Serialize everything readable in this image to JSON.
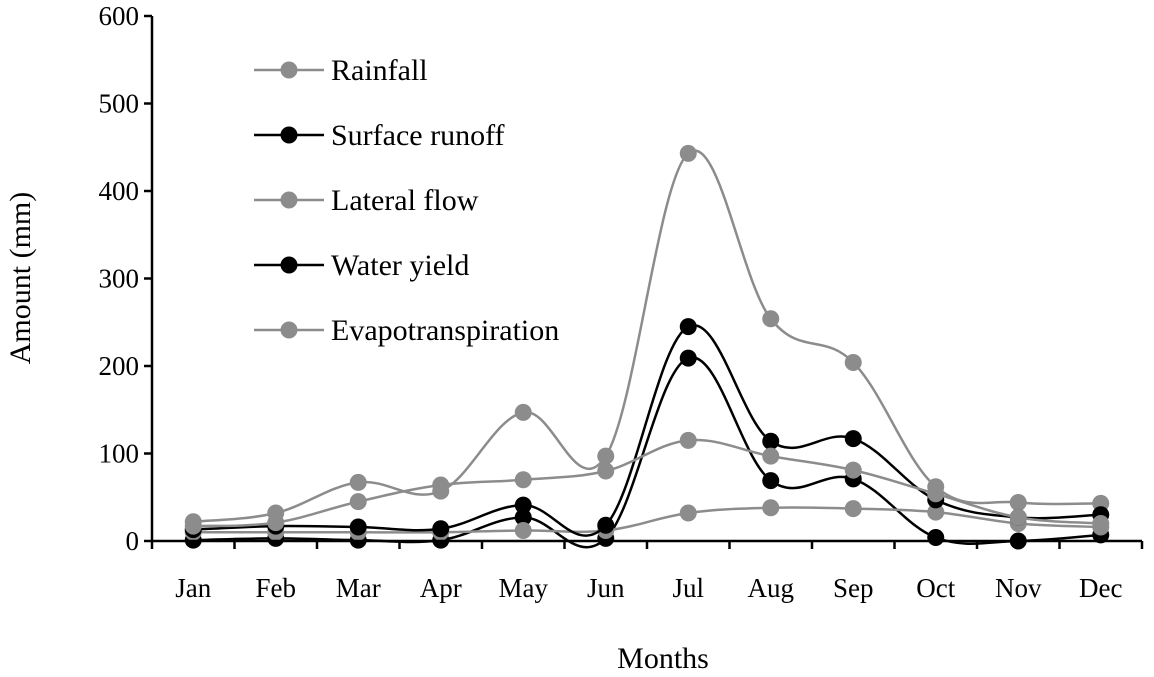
{
  "chart_data": {
    "type": "line",
    "title": "",
    "xlabel": "Months",
    "ylabel": "Amount (mm)",
    "ylim": [
      0,
      600
    ],
    "yticks": [
      "0",
      "100",
      "200",
      "300",
      "400",
      "500",
      "600"
    ],
    "categories": [
      "Jan",
      "Feb",
      "Mar",
      "Apr",
      "May",
      "Jun",
      "Jul",
      "Aug",
      "Sep",
      "Oct",
      "Nov",
      "Dec"
    ],
    "grid": false,
    "legend_position": "top-left",
    "smooth": true,
    "series": [
      {
        "name": "Rainfall",
        "color": "#8c8c8c",
        "values": [
          22,
          32,
          67,
          57,
          147,
          97,
          443,
          254,
          204,
          62,
          44,
          43
        ]
      },
      {
        "name": "Surface runoff",
        "color": "#000000",
        "values": [
          1,
          3,
          1,
          1,
          27,
          3,
          209,
          69,
          71,
          4,
          0,
          7
        ]
      },
      {
        "name": "Lateral flow",
        "color": "#8c8c8c",
        "values": [
          10,
          10,
          10,
          10,
          12,
          12,
          32,
          38,
          37,
          33,
          20,
          16
        ]
      },
      {
        "name": "Water yield",
        "color": "#000000",
        "values": [
          13,
          17,
          16,
          14,
          41,
          18,
          245,
          114,
          117,
          47,
          27,
          30
        ]
      },
      {
        "name": "Evapotranspiration",
        "color": "#8c8c8c",
        "values": [
          17,
          21,
          45,
          64,
          70,
          80,
          115,
          97,
          81,
          54,
          27,
          20
        ]
      }
    ]
  }
}
